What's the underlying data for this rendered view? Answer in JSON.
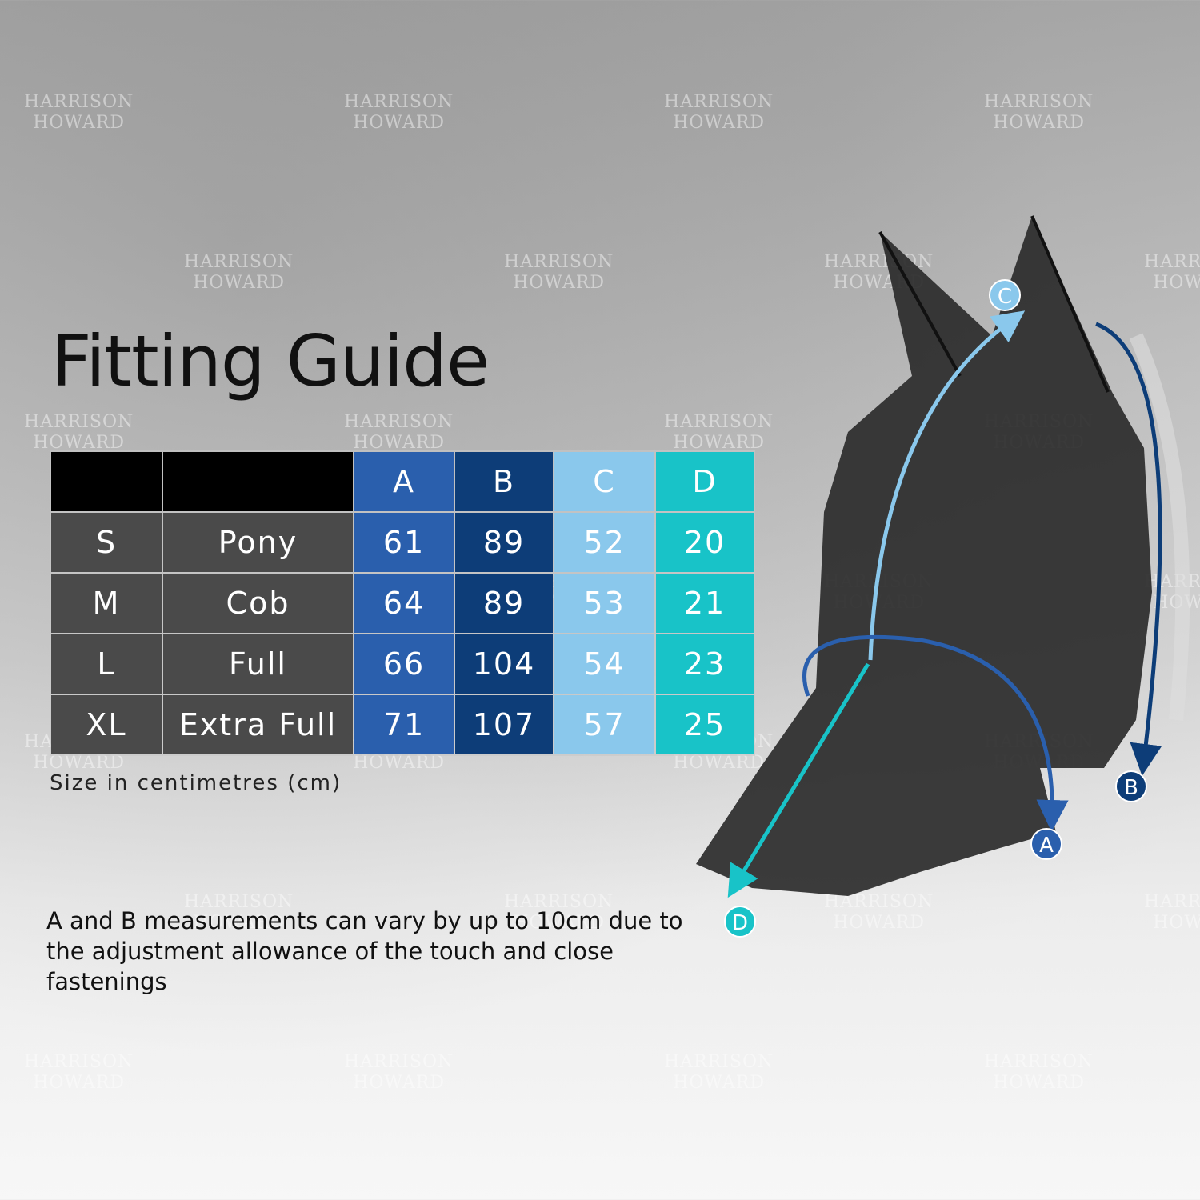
{
  "title": "Fitting Guide",
  "watermark": "HARRISON HOWARD",
  "table": {
    "headers": [
      "",
      "",
      "A",
      "B",
      "C",
      "D"
    ],
    "rows": [
      {
        "size": "S",
        "name": "Pony",
        "A": "61",
        "B": "89",
        "C": "52",
        "D": "20"
      },
      {
        "size": "M",
        "name": "Cob",
        "A": "64",
        "B": "89",
        "C": "53",
        "D": "21"
      },
      {
        "size": "L",
        "name": "Full",
        "A": "66",
        "B": "104",
        "C": "54",
        "D": "23"
      },
      {
        "size": "XL",
        "name": "Extra Full",
        "A": "71",
        "B": "107",
        "C": "57",
        "D": "25"
      }
    ]
  },
  "unit_note": "Size in centimetres (cm)",
  "note": "A and B measurements can vary by up to 10cm due to the adjustment allowance of the touch and close fastenings",
  "diagram_labels": {
    "A": "A",
    "B": "B",
    "C": "C",
    "D": "D"
  },
  "colors": {
    "A": "#2a5fad",
    "B": "#0d3d78",
    "C": "#8ac8ec",
    "D": "#18c3c8",
    "row": "#4a4a4a",
    "header": "#000000"
  }
}
